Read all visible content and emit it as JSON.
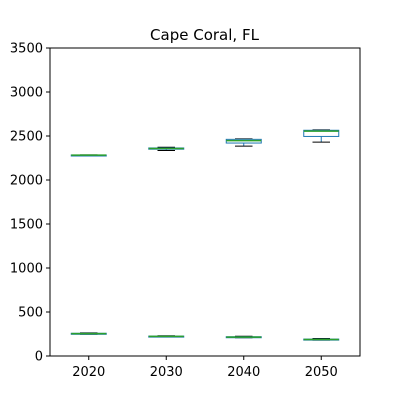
{
  "chart_data": {
    "type": "box",
    "title": "Cape Coral, FL",
    "xlabel": "",
    "ylabel": "",
    "categories": [
      "2020",
      "2030",
      "2040",
      "2050"
    ],
    "ylim": [
      0,
      3500
    ],
    "yticks": [
      0,
      500,
      1000,
      1500,
      2000,
      2500,
      3000,
      3500
    ],
    "grid": false,
    "legend": "none",
    "series": [
      {
        "boxes": [
          {
            "whislo": 2278,
            "q1": 2280,
            "med": 2282,
            "q3": 2284,
            "whishi": 2286
          },
          {
            "whislo": 2335,
            "q1": 2350,
            "med": 2358,
            "q3": 2364,
            "whishi": 2372
          },
          {
            "whislo": 2385,
            "q1": 2420,
            "med": 2448,
            "q3": 2462,
            "whishi": 2468
          },
          {
            "whislo": 2430,
            "q1": 2495,
            "med": 2555,
            "q3": 2565,
            "whishi": 2570
          }
        ]
      },
      {
        "boxes": [
          {
            "whislo": 247,
            "q1": 250,
            "med": 254,
            "q3": 258,
            "whishi": 263
          },
          {
            "whislo": 218,
            "q1": 220,
            "med": 223,
            "q3": 226,
            "whishi": 230
          },
          {
            "whislo": 208,
            "q1": 211,
            "med": 215,
            "q3": 219,
            "whishi": 224
          },
          {
            "whislo": 180,
            "q1": 184,
            "med": 188,
            "q3": 192,
            "whishi": 199
          }
        ]
      }
    ],
    "colors": {
      "box": "#1f77b4",
      "median": "#2ca02c",
      "whisker": "#000000",
      "axis": "#000000"
    }
  }
}
